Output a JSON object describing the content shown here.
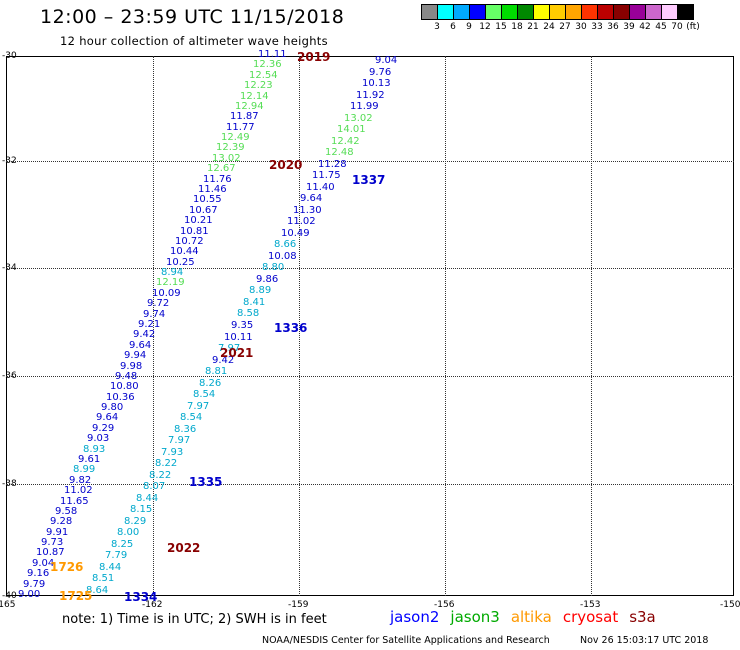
{
  "header": {
    "title": "12:00  –  23:59  UTC  11/15/2018",
    "subtitle": "12 hour collection of altimeter wave heights"
  },
  "color_scale": {
    "labels": [
      "3",
      "6",
      "9",
      "12",
      "15",
      "18",
      "21",
      "24",
      "27",
      "30",
      "33",
      "36",
      "39",
      "42",
      "45",
      "70",
      "(ft)"
    ],
    "colors": [
      "#888888",
      "#00ffff",
      "#00aaff",
      "#0000ff",
      "#66ff66",
      "#00dd00",
      "#008800",
      "#ffff00",
      "#ffcc00",
      "#ffa500",
      "#ff3300",
      "#bb0000",
      "#880000",
      "#990099",
      "#cc66cc",
      "#ffccff",
      "#000000"
    ]
  },
  "axes": {
    "y_labels": [
      "-30",
      "-32",
      "-34",
      "-36",
      "-38",
      "-40"
    ],
    "x_labels": [
      "-165",
      "-162",
      "-159",
      "-156",
      "-153",
      "-150"
    ]
  },
  "orbits": [
    "2019",
    "2020",
    "1337",
    "1336",
    "2021",
    "1335",
    "2022",
    "1726",
    "1725",
    "1334"
  ],
  "left_track": [
    "11.11",
    "12.36",
    "12.54",
    "12.23",
    "12.14",
    "12.94",
    "11.87",
    "11.77",
    "12.49",
    "12.39",
    "13.02",
    "12.67",
    "11.76",
    "11.46",
    "10.55",
    "10.67",
    "10.21",
    "10.81",
    "10.72",
    "10.44",
    "10.25",
    "8.94",
    "12.19",
    "10.09",
    "9.72",
    "9.74",
    "9.21",
    "9.42",
    "9.64",
    "9.94",
    "9.98",
    "9.48",
    "10.80",
    "10.36",
    "9.80",
    "9.64",
    "9.29",
    "9.03",
    "8.93",
    "9.61",
    "8.99",
    "9.82",
    "11.02",
    "11.65",
    "9.58",
    "9.28",
    "9.91",
    "9.73",
    "10.87",
    "9.04",
    "9.16",
    "9.79",
    "9.00"
  ],
  "right_track": [
    "9.04",
    "9.76",
    "10.13",
    "11.92",
    "11.99",
    "13.02",
    "14.01",
    "12.42",
    "12.48",
    "11.28",
    "11.75",
    "11.40",
    "9.64",
    "11.30",
    "11.02",
    "10.49",
    "8.66",
    "10.08",
    "8.80",
    "9.86",
    "8.89",
    "8.41",
    "8.58",
    "9.35",
    "10.11",
    "7.97",
    "9.42",
    "8.81",
    "8.26",
    "8.54",
    "7.97",
    "8.54",
    "8.36",
    "7.97",
    "7.93",
    "8.22",
    "8.22",
    "8.07",
    "8.44",
    "8.15",
    "8.29",
    "8.00",
    "8.25",
    "7.79",
    "8.44",
    "8.51",
    "8.64"
  ],
  "notes": {
    "note": "note:  1) Time is in UTC;  2) SWH is in feet"
  },
  "legend": [
    {
      "label": "jason2",
      "color": "#0000ff"
    },
    {
      "label": "jason3",
      "color": "#00aa00"
    },
    {
      "label": "altika",
      "color": "#ff9900"
    },
    {
      "label": "cryosat",
      "color": "#ff0000"
    },
    {
      "label": "s3a",
      "color": "#880000"
    }
  ],
  "footer": {
    "left": "NOAA/NESDIS Center for Satellite Applications and Research",
    "right": "Nov 26 15:03:17 UTC 2018"
  }
}
